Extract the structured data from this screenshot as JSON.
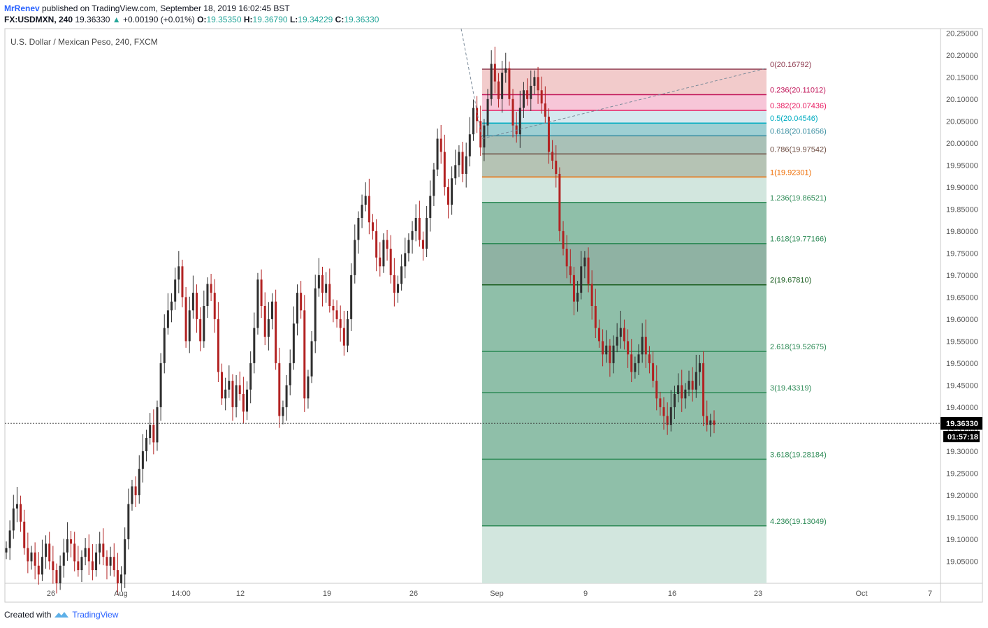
{
  "header": {
    "author": "MrRenev",
    "published": "published on TradingView.com, September 18, 2019 16:02:45 BST",
    "symbol": "FX:USDMXN, 240",
    "last": "19.36330",
    "change": "+0.00190 (+0.01%)",
    "o_label": "O:",
    "o": "19.35350",
    "h_label": "H:",
    "h": "19.36790",
    "l_label": "L:",
    "l": "19.34229",
    "c_label": "C:",
    "c": "19.36330"
  },
  "chart_title": "U.S. Dollar / Mexican Peso, 240, FXCM",
  "footer": {
    "created_with": "Created with",
    "brand": "TradingView"
  },
  "price_badge": {
    "price": "19.36330",
    "countdown": "01:57:18"
  },
  "colors": {
    "up": "#2f2f2f",
    "down": "#b22222",
    "accent": "#2962ff",
    "fib_zone": "#8fbfa9"
  },
  "chart_data": {
    "type": "candlestick",
    "title": "U.S. Dollar / Mexican Peso, 240, FXCM",
    "ylim": [
      19.0,
      20.26
    ],
    "y_ticks": [
      "19.05000",
      "19.10000",
      "19.15000",
      "19.20000",
      "19.25000",
      "19.30000",
      "19.35000",
      "19.40000",
      "19.45000",
      "19.50000",
      "19.55000",
      "19.60000",
      "19.65000",
      "19.70000",
      "19.75000",
      "19.80000",
      "19.85000",
      "19.90000",
      "19.95000",
      "20.00000",
      "20.05000",
      "20.10000",
      "20.15000",
      "20.20000",
      "20.25000"
    ],
    "x_ticks": [
      "26",
      "Aug",
      "14:00",
      "12",
      "19",
      "26",
      "Sep",
      "9",
      "16",
      "23",
      "Oct",
      "7"
    ],
    "current_price": 19.3633,
    "fibonacci": [
      {
        "label": "0(20.16792)",
        "value": 20.16792,
        "color": "#8e3a4f"
      },
      {
        "label": "0.236(20.11012)",
        "value": 20.11012,
        "color": "#c2185b"
      },
      {
        "label": "0.382(20.07436)",
        "value": 20.07436,
        "color": "#e91e63"
      },
      {
        "label": "0.5(20.04546)",
        "value": 20.04546,
        "color": "#00acc1"
      },
      {
        "label": "0.618(20.01656)",
        "value": 20.01656,
        "color": "#3a8ea0"
      },
      {
        "label": "0.786(19.97542)",
        "value": 19.97542,
        "color": "#6d4c41"
      },
      {
        "label": "1(19.92301)",
        "value": 19.92301,
        "color": "#ef6c00"
      },
      {
        "label": "1.236(19.86521)",
        "value": 19.86521,
        "color": "#2e8b57"
      },
      {
        "label": "1.618(19.77166)",
        "value": 19.77166,
        "color": "#2e8b57"
      },
      {
        "label": "2(19.67810)",
        "value": 19.6781,
        "color": "#1b5e20"
      },
      {
        "label": "2.618(19.52675)",
        "value": 19.52675,
        "color": "#2e8b57"
      },
      {
        "label": "3(19.43319)",
        "value": 19.43319,
        "color": "#2e8b57"
      },
      {
        "label": "3.618(19.28184)",
        "value": 19.28184,
        "color": "#2e8b57"
      },
      {
        "label": "4.236(19.13049)",
        "value": 19.13049,
        "color": "#2e8b57"
      }
    ],
    "trend_line": {
      "from": 20.26,
      "to": 20.01
    },
    "extension_line": {
      "from": 20.01,
      "to": 20.17
    },
    "closes": [
      19.08,
      19.12,
      19.17,
      19.18,
      19.14,
      19.08,
      19.05,
      19.07,
      19.04,
      19.02,
      19.06,
      19.09,
      19.05,
      19.03,
      19.0,
      19.04,
      19.07,
      19.1,
      19.09,
      19.05,
      19.03,
      19.06,
      19.08,
      19.05,
      19.03,
      19.07,
      19.09,
      19.06,
      19.04,
      19.06,
      19.03,
      19.0,
      19.02,
      19.1,
      19.18,
      19.22,
      19.2,
      19.26,
      19.3,
      19.33,
      19.36,
      19.32,
      19.4,
      19.5,
      19.58,
      19.62,
      19.64,
      19.69,
      19.72,
      19.65,
      19.55,
      19.62,
      19.66,
      19.6,
      19.55,
      19.63,
      19.68,
      19.66,
      19.6,
      19.48,
      19.42,
      19.44,
      19.46,
      19.4,
      19.45,
      19.43,
      19.39,
      19.44,
      19.5,
      19.58,
      19.69,
      19.63,
      19.56,
      19.6,
      19.64,
      19.5,
      19.38,
      19.4,
      19.45,
      19.5,
      19.59,
      19.66,
      19.62,
      19.42,
      19.47,
      19.55,
      19.67,
      19.7,
      19.66,
      19.68,
      19.63,
      19.62,
      19.6,
      19.58,
      19.54,
      19.6,
      19.7,
      19.78,
      19.83,
      19.86,
      19.88,
      19.82,
      19.8,
      19.74,
      19.72,
      19.78,
      19.76,
      19.7,
      19.66,
      19.68,
      19.72,
      19.75,
      19.78,
      19.8,
      19.83,
      19.78,
      19.76,
      19.83,
      19.88,
      19.94,
      20.01,
      19.98,
      19.9,
      19.86,
      19.92,
      19.95,
      19.98,
      19.93,
      19.97,
      20.02,
      20.08,
      20.05,
      19.99,
      20.04,
      20.1,
      20.18,
      20.14,
      20.1,
      20.16,
      20.17,
      20.1,
      20.04,
      20.02,
      20.08,
      20.12,
      20.1,
      20.13,
      20.15,
      20.12,
      20.09,
      20.06,
      19.98,
      19.96,
      19.93,
      19.8,
      19.76,
      19.72,
      19.7,
      19.64,
      19.66,
      19.72,
      19.74,
      19.68,
      19.63,
      19.58,
      19.55,
      19.52,
      19.54,
      19.5,
      19.54,
      19.56,
      19.58,
      19.55,
      19.52,
      19.48,
      19.5,
      19.52,
      19.56,
      19.52,
      19.5,
      19.46,
      19.42,
      19.4,
      19.38,
      19.36,
      19.4,
      19.43,
      19.45,
      19.42,
      19.44,
      19.46,
      19.44,
      19.48,
      19.5,
      19.38,
      19.36,
      19.37,
      19.36
    ]
  }
}
